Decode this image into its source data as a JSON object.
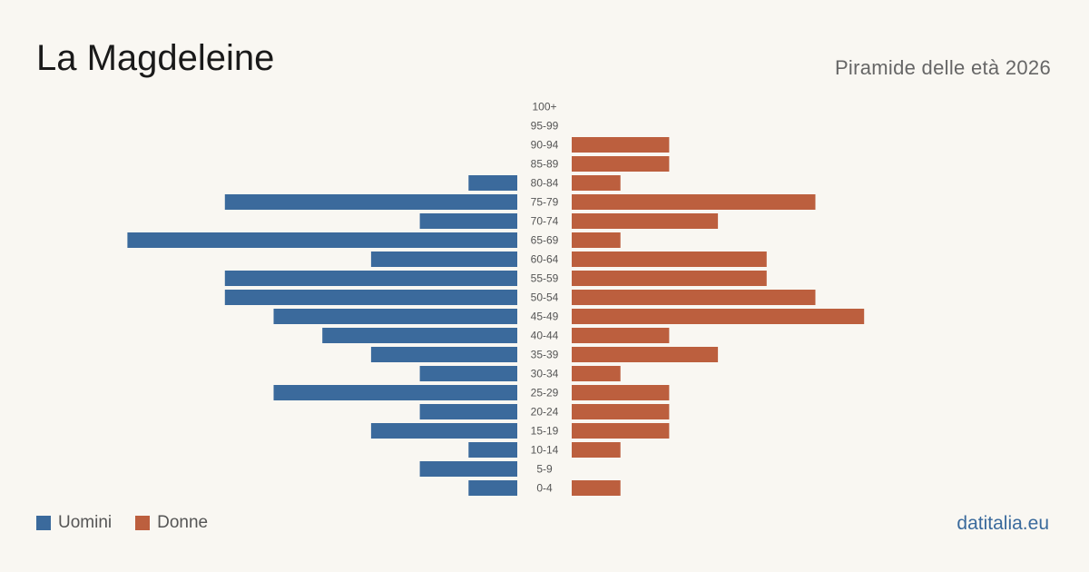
{
  "header": {
    "title": "La Magdeleine",
    "subtitle": "Piramide delle età 2026"
  },
  "legend": {
    "men_label": "Uomini",
    "women_label": "Donne"
  },
  "colors": {
    "men": "#3b6a9c",
    "women": "#bc5f3e",
    "background": "#f9f7f2"
  },
  "footer": {
    "brand": "datitalia.eu"
  },
  "chart_data": {
    "type": "bar",
    "orientation": "horizontal-pyramid",
    "title": "La Magdeleine",
    "subtitle": "Piramide delle età 2026",
    "categories": [
      "100+",
      "95-99",
      "90-94",
      "85-89",
      "80-84",
      "75-79",
      "70-74",
      "65-69",
      "60-64",
      "55-59",
      "50-54",
      "45-49",
      "40-44",
      "35-39",
      "30-34",
      "25-29",
      "20-24",
      "15-19",
      "10-14",
      "5-9",
      "0-4"
    ],
    "series": [
      {
        "name": "Uomini",
        "values": [
          0,
          0,
          0,
          0,
          1,
          6,
          2,
          8,
          3,
          6,
          6,
          5,
          4,
          3,
          2,
          5,
          2,
          3,
          1,
          2,
          1
        ]
      },
      {
        "name": "Donne",
        "values": [
          0,
          0,
          2,
          2,
          1,
          5,
          3,
          1,
          4,
          4,
          5,
          6,
          2,
          3,
          1,
          2,
          2,
          2,
          1,
          0,
          1
        ]
      }
    ],
    "legend_position": "bottom-left",
    "grid": false
  }
}
